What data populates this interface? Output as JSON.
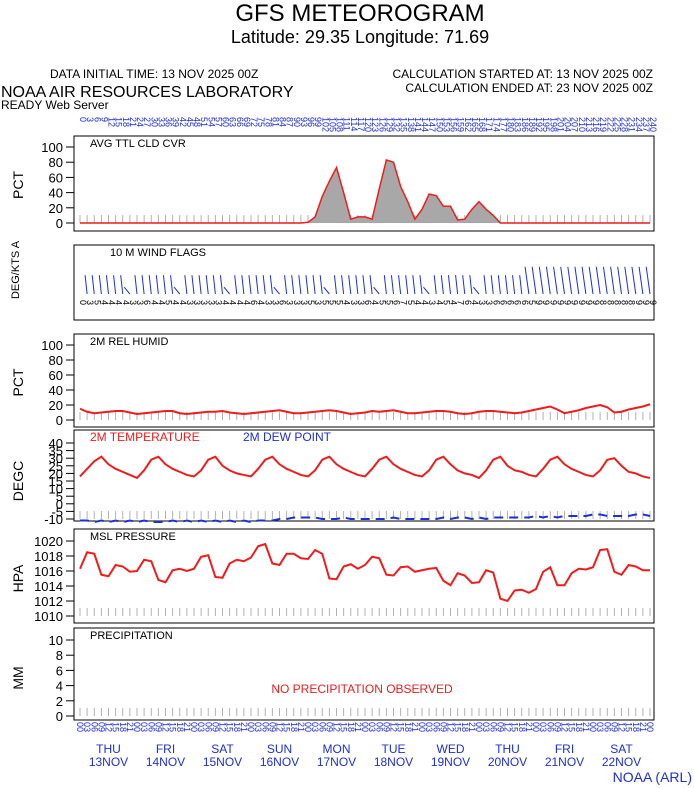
{
  "header": {
    "title": "GFS METEOROGRAM",
    "location": "Latitude: 29.35 Longitude:  71.69",
    "init_time": "DATA INITIAL TIME: 13 NOV 2025 00Z",
    "calc_started": "CALCULATION STARTED AT: 13 NOV 2025 00Z",
    "calc_ended": "CALCULATION ENDED AT: 23 NOV 2025 00Z",
    "lab": "NOAA AIR RESOURCES LABORATORY",
    "server": "READY Web Server",
    "footer": "NOAA (ARL)"
  },
  "colors": {
    "red": "#ee1c1c",
    "blue": "#1f2fd0",
    "grid": "#b0b0b0",
    "fill": "#a8a8a8"
  },
  "chart_data": [
    {
      "type": "area",
      "title": "AVG TTL CLD CVR",
      "ylabel": "PCT",
      "ylim": [
        0,
        100
      ],
      "yticks": [
        0,
        20,
        40,
        60,
        80,
        100
      ],
      "values": [
        0,
        0,
        0,
        0,
        0,
        0,
        0,
        0,
        0,
        0,
        0,
        0,
        0,
        0,
        0,
        0,
        0,
        0,
        0,
        0,
        0,
        0,
        0,
        0,
        0,
        0,
        0,
        0,
        0,
        0,
        0,
        0,
        1,
        8,
        35,
        55,
        73,
        40,
        5,
        8,
        8,
        5,
        45,
        83,
        80,
        48,
        28,
        5,
        18,
        38,
        36,
        22,
        22,
        4,
        5,
        18,
        28,
        18,
        10,
        0,
        0,
        0,
        0,
        0,
        0,
        0,
        0,
        0,
        0,
        0,
        0,
        0,
        0,
        0,
        0,
        0,
        0,
        0,
        0,
        0,
        0
      ]
    },
    {
      "type": "table",
      "title": "10 M  WIND FLAGS",
      "ylabel": "DEG/KTS  A",
      "speeds_kts": [
        "0",
        "3",
        "5",
        "4",
        "4",
        "4",
        "4",
        "3",
        "3",
        "6",
        "4",
        "4",
        "5",
        "4",
        "4",
        "3",
        "3",
        "3",
        "3",
        "3",
        "4",
        "4",
        "4",
        "4",
        "6",
        "4",
        "3",
        "3",
        "6",
        "3",
        "3",
        "3",
        "5",
        "3",
        "5",
        "5",
        "5",
        "4",
        "3",
        "3",
        "6",
        "4",
        "5",
        "5",
        "6",
        "7",
        "5",
        "4",
        "4",
        "3",
        "4",
        "5",
        "4",
        "7",
        "6",
        "4",
        "3",
        "3",
        "6",
        "6",
        "6",
        "6",
        "6",
        "5",
        "9",
        "9",
        "9",
        "9",
        "9",
        "9",
        "9",
        "9",
        "9",
        "8",
        "8",
        "8",
        "8",
        "8",
        "9",
        "9",
        "9"
      ]
    },
    {
      "type": "line",
      "title": "2M REL HUMID",
      "ylabel": "PCT",
      "ylim": [
        0,
        100
      ],
      "yticks": [
        0,
        20,
        40,
        60,
        80,
        100
      ],
      "values": [
        15,
        11,
        9,
        10,
        11,
        12,
        12,
        10,
        8,
        9,
        10,
        11,
        12,
        12,
        9,
        8,
        9,
        10,
        11,
        11,
        12,
        10,
        9,
        8,
        9,
        10,
        11,
        12,
        13,
        11,
        9,
        9,
        10,
        11,
        12,
        13,
        12,
        10,
        8,
        9,
        10,
        12,
        11,
        12,
        13,
        11,
        9,
        9,
        10,
        11,
        12,
        12,
        11,
        9,
        8,
        9,
        11,
        12,
        12,
        11,
        10,
        9,
        10,
        12,
        14,
        16,
        18,
        14,
        9,
        11,
        13,
        16,
        18,
        20,
        17,
        10,
        11,
        14,
        16,
        18,
        21
      ]
    },
    {
      "type": "line",
      "title": "",
      "ylabel": "DEGC",
      "ylim": [
        -10,
        40
      ],
      "yticks": [
        -10,
        -5,
        0,
        5,
        10,
        15,
        20,
        25,
        30,
        35,
        40
      ],
      "series": [
        {
          "name": "2M TEMPERATURE",
          "color": "#ee1c1c",
          "dash": "solid",
          "values": [
            18,
            23,
            28,
            31,
            26,
            23,
            21,
            19,
            17,
            22,
            29,
            31,
            26,
            23,
            21,
            19,
            18,
            22,
            29,
            31,
            25,
            22,
            20,
            19,
            18,
            23,
            29,
            31,
            26,
            23,
            21,
            19,
            18,
            22,
            29,
            31,
            26,
            23,
            21,
            19,
            18,
            23,
            29,
            31,
            26,
            23,
            21,
            19,
            18,
            22,
            29,
            31,
            26,
            22,
            20,
            19,
            17,
            22,
            29,
            31,
            25,
            22,
            21,
            19,
            18,
            23,
            29,
            31,
            26,
            23,
            21,
            19,
            18,
            22,
            29,
            30,
            25,
            21,
            20,
            18,
            17
          ]
        },
        {
          "name": "2M   DEW POINT",
          "color": "#1f2fd0",
          "dash": "dashed",
          "values": [
            -11,
            -11,
            -12,
            -11,
            -12,
            -11,
            -12,
            -11,
            -12,
            -11,
            -12,
            -12,
            -12,
            -11,
            -12,
            -11,
            -12,
            -11,
            -12,
            -11,
            -12,
            -11,
            -12,
            -11,
            -12,
            -11,
            -11,
            -11,
            -10,
            -10,
            -9,
            -9,
            -9,
            -9,
            -10,
            -10,
            -10,
            -9,
            -10,
            -10,
            -10,
            -10,
            -10,
            -10,
            -9,
            -10,
            -10,
            -10,
            -10,
            -10,
            -10,
            -9,
            -10,
            -9,
            -9,
            -10,
            -9,
            -10,
            -9,
            -9,
            -9,
            -9,
            -9,
            -9,
            -8,
            -9,
            -8,
            -9,
            -8,
            -8,
            -8,
            -8,
            -7,
            -7,
            -8,
            -8,
            -8,
            -8,
            -7,
            -7,
            -8
          ]
        }
      ]
    },
    {
      "type": "line",
      "title": "MSL PRESSURE",
      "ylabel": "HPA",
      "ylim": [
        1010,
        1020
      ],
      "yticks": [
        1010,
        1012,
        1014,
        1016,
        1018,
        1020
      ],
      "values": [
        1016.3,
        1018.5,
        1018.3,
        1015.5,
        1015.3,
        1016.8,
        1016.6,
        1015.9,
        1016.0,
        1017.5,
        1017.3,
        1014.8,
        1014.5,
        1016.1,
        1016.3,
        1016.0,
        1016.3,
        1017.9,
        1018.1,
        1015.2,
        1015.1,
        1017.0,
        1017.5,
        1017.3,
        1017.8,
        1019.3,
        1019.6,
        1017.0,
        1016.8,
        1018.3,
        1018.3,
        1017.7,
        1017.6,
        1018.8,
        1018.3,
        1015.0,
        1014.9,
        1016.6,
        1016.9,
        1016.3,
        1016.8,
        1017.9,
        1017.7,
        1015.5,
        1015.4,
        1016.5,
        1016.6,
        1015.9,
        1016.1,
        1016.3,
        1016.4,
        1014.7,
        1014.1,
        1015.7,
        1015.4,
        1014.4,
        1014.5,
        1016.1,
        1015.8,
        1012.3,
        1012.0,
        1013.4,
        1013.5,
        1013.1,
        1013.6,
        1015.9,
        1016.5,
        1014.1,
        1014.1,
        1015.7,
        1016.3,
        1016.2,
        1016.5,
        1018.8,
        1018.9,
        1015.9,
        1015.5,
        1016.8,
        1016.6,
        1016.1,
        1016.1
      ]
    },
    {
      "type": "bar",
      "title": "PRECIPITATION",
      "ylabel": "MM",
      "ylim": [
        0,
        10
      ],
      "yticks": [
        0,
        2,
        4,
        6,
        8,
        10
      ],
      "annotation": "NO PRECIPITATION OBSERVED",
      "values": []
    }
  ],
  "time_axis": {
    "hour_labels": [
      "00",
      "03",
      "06",
      "09",
      "12",
      "15",
      "18",
      "21"
    ],
    "days": [
      {
        "dow": "THU",
        "date": "13NOV"
      },
      {
        "dow": "FRI",
        "date": "14NOV"
      },
      {
        "dow": "SAT",
        "date": "15NOV"
      },
      {
        "dow": "SUN",
        "date": "16NOV"
      },
      {
        "dow": "MON",
        "date": "17NOV"
      },
      {
        "dow": "TUE",
        "date": "18NOV"
      },
      {
        "dow": "WED",
        "date": "19NOV"
      },
      {
        "dow": "THU",
        "date": "20NOV"
      },
      {
        "dow": "FRI",
        "date": "21NOV"
      },
      {
        "dow": "SAT",
        "date": "22NOV"
      }
    ]
  }
}
